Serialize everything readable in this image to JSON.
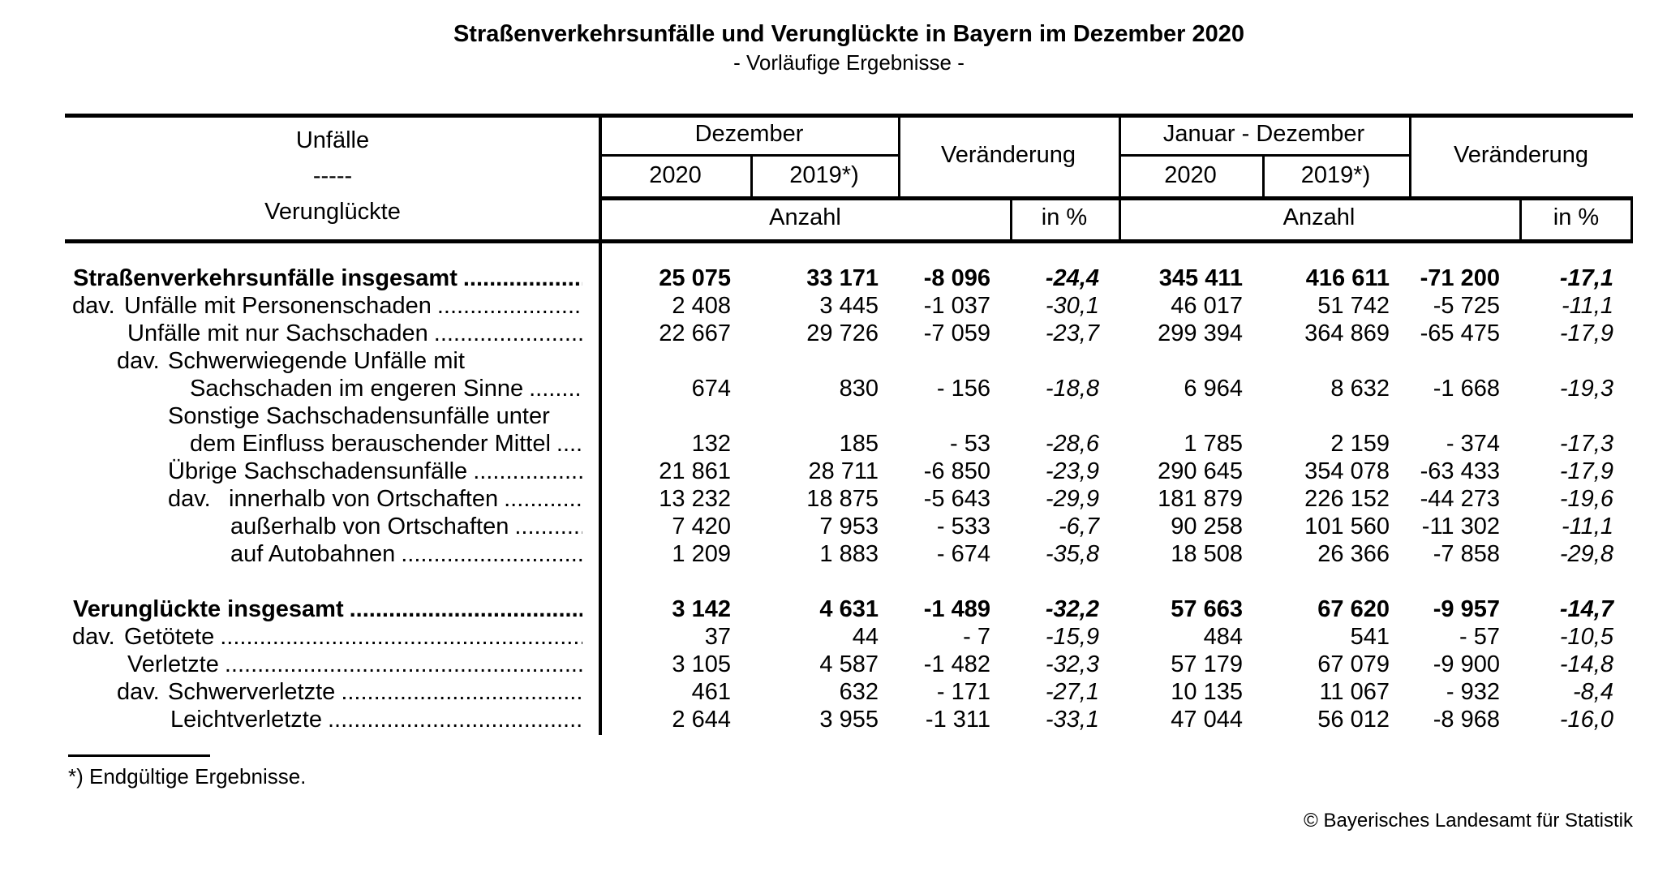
{
  "title": "Straßenverkehrsunfälle und Verunglückte in Bayern im Dezember 2020",
  "subtitle": "- Vorläufige Ergebnisse -",
  "table": {
    "header": {
      "stub_line1": "Unfälle",
      "stub_line2": "-----",
      "stub_line3": "Verunglückte",
      "period1": "Dezember",
      "period2": "Januar - Dezember",
      "change_label": "Veränderung",
      "year_2020": "2020",
      "year_2019": "2019*)",
      "count_label": "Anzahl",
      "percent_label": "in %"
    },
    "leader": "........................................................................................................................",
    "rows": [
      {
        "label": "Straßenverkehrsunfälle insgesamt",
        "bold": true,
        "indent": 10,
        "prefix": "",
        "prefix_indent": 0,
        "dots": true,
        "values": [
          "25 075",
          "33 171",
          "-8 096",
          "-24,4",
          "345 411",
          "416 611",
          "-71 200",
          "-17,1"
        ]
      },
      {
        "label": "Unfälle mit Personenschaden",
        "bold": false,
        "indent": 73,
        "prefix": "dav.",
        "prefix_indent": 9,
        "dots": true,
        "values": [
          "2 408",
          "3 445",
          "-1 037",
          "-30,1",
          "46 017",
          "51 742",
          "-5 725",
          "-11,1"
        ]
      },
      {
        "label": "Unfälle mit nur Sachschaden",
        "bold": false,
        "indent": 77,
        "prefix": "",
        "prefix_indent": 0,
        "dots": true,
        "values": [
          "22 667",
          "29 726",
          "-7 059",
          "-23,7",
          "299 394",
          "364 869",
          "-65 475",
          "-17,9"
        ]
      },
      {
        "label": "Schwerwiegende Unfälle mit",
        "bold": false,
        "indent": 127,
        "prefix": "dav.",
        "prefix_indent": 64,
        "dots": false,
        "values": null
      },
      {
        "label": "Sachschaden im engeren Sinne",
        "bold": false,
        "indent": 154,
        "prefix": "",
        "prefix_indent": 0,
        "dots": true,
        "values": [
          "674",
          "830",
          "- 156",
          "-18,8",
          "6 964",
          "8 632",
          "-1 668",
          "-19,3"
        ]
      },
      {
        "label": "Sonstige Sachschadensunfälle unter",
        "bold": false,
        "indent": 127,
        "prefix": "",
        "prefix_indent": 0,
        "dots": false,
        "values": null
      },
      {
        "label": "dem Einfluss berauschender Mittel",
        "bold": false,
        "indent": 154,
        "prefix": "",
        "prefix_indent": 0,
        "dots": true,
        "values": [
          "132",
          "185",
          "- 53",
          "-28,6",
          "1 785",
          "2 159",
          "- 374",
          "-17,3"
        ]
      },
      {
        "label": "Übrige Sachschadensunfälle",
        "bold": false,
        "indent": 127,
        "prefix": "",
        "prefix_indent": 0,
        "dots": true,
        "values": [
          "21 861",
          "28 711",
          "-6 850",
          "-23,9",
          "290 645",
          "354 078",
          "-63 433",
          "-17,9"
        ]
      },
      {
        "label": "innerhalb von Ortschaften",
        "bold": false,
        "indent": 202,
        "prefix": "dav.",
        "prefix_indent": 127,
        "dots": true,
        "values": [
          "13 232",
          "18 875",
          "-5 643",
          "-29,9",
          "181 879",
          "226 152",
          "-44 273",
          "-19,6"
        ]
      },
      {
        "label": "außerhalb von Ortschaften",
        "bold": false,
        "indent": 204,
        "prefix": "",
        "prefix_indent": 0,
        "dots": true,
        "values": [
          "7 420",
          "7 953",
          "- 533",
          "-6,7",
          "90 258",
          "101 560",
          "-11 302",
          "-11,1"
        ]
      },
      {
        "label": "auf Autobahnen",
        "bold": false,
        "indent": 204,
        "prefix": "",
        "prefix_indent": 0,
        "dots": true,
        "values": [
          "1 209",
          "1 883",
          "- 674",
          "-35,8",
          "18 508",
          "26 366",
          "-7 858",
          "-29,8"
        ]
      },
      {
        "spacer": true
      },
      {
        "label": "Verunglückte insgesamt",
        "bold": true,
        "indent": 10,
        "prefix": "",
        "prefix_indent": 0,
        "dots": true,
        "values": [
          "3 142",
          "4 631",
          "-1 489",
          "-32,2",
          "57 663",
          "67 620",
          "-9 957",
          "-14,7"
        ]
      },
      {
        "label": "Getötete",
        "bold": false,
        "indent": 73,
        "prefix": "dav.",
        "prefix_indent": 9,
        "dots": true,
        "values": [
          "37",
          "44",
          "- 7",
          "-15,9",
          "484",
          "541",
          "- 57",
          "-10,5"
        ]
      },
      {
        "label": "Verletzte",
        "bold": false,
        "indent": 77,
        "prefix": "",
        "prefix_indent": 0,
        "dots": true,
        "values": [
          "3 105",
          "4 587",
          "-1 482",
          "-32,3",
          "57 179",
          "67 079",
          "-9 900",
          "-14,8"
        ]
      },
      {
        "label": "Schwerverletzte",
        "bold": false,
        "indent": 127,
        "prefix": "dav.",
        "prefix_indent": 64,
        "dots": true,
        "values": [
          "461",
          "632",
          "- 171",
          "-27,1",
          "10 135",
          "11 067",
          "- 932",
          "-8,4"
        ]
      },
      {
        "label": "Leichtverletzte",
        "bold": false,
        "indent": 130,
        "prefix": "",
        "prefix_indent": 0,
        "dots": true,
        "values": [
          "2 644",
          "3 955",
          "-1 311",
          "-33,1",
          "47 044",
          "56 012",
          "-8 968",
          "-16,0"
        ]
      }
    ]
  },
  "footnote": "*) Endgültige Ergebnisse.",
  "copyright": "© Bayerisches Landesamt für Statistik"
}
